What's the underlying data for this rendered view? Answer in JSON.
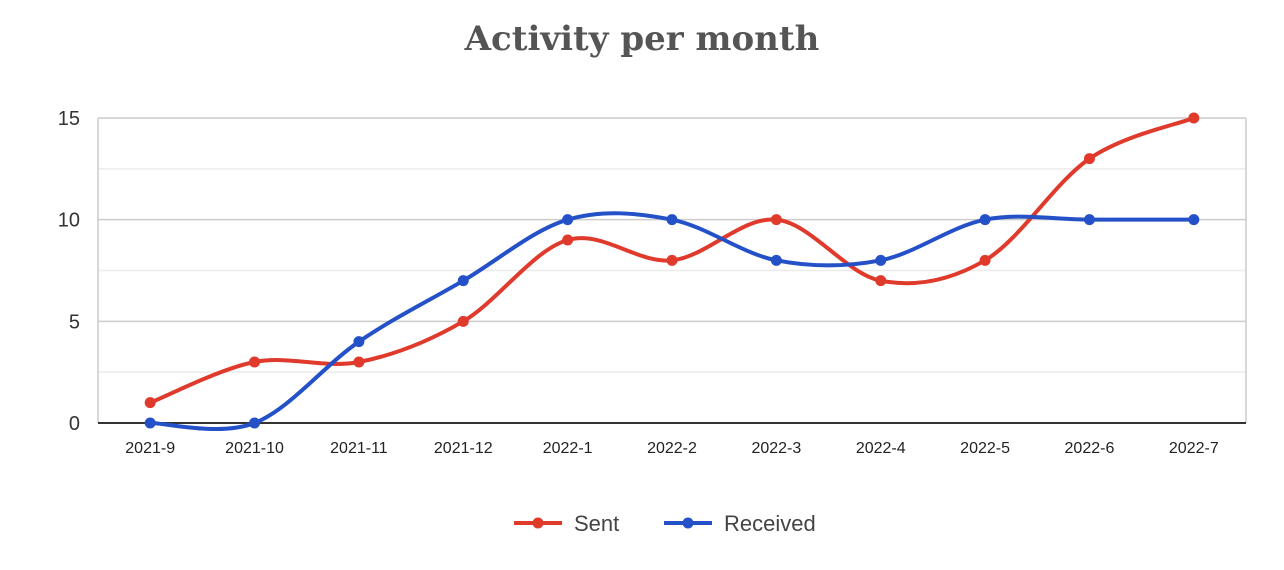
{
  "chart_data": {
    "type": "line",
    "title": "Activity per month",
    "xlabel": "",
    "ylabel": "",
    "categories": [
      "2021-9",
      "2021-10",
      "2021-11",
      "2021-12",
      "2022-1",
      "2022-2",
      "2022-3",
      "2022-4",
      "2022-5",
      "2022-6",
      "2022-7"
    ],
    "ylim": [
      0,
      15
    ],
    "yticks": [
      0,
      5,
      10,
      15
    ],
    "grid": true,
    "smooth": true,
    "legend_position": "bottom",
    "series": [
      {
        "name": "Sent",
        "color": "#e03a2c",
        "values": [
          1,
          3,
          3,
          5,
          9,
          8,
          10,
          7,
          8,
          13,
          15
        ]
      },
      {
        "name": "Received",
        "color": "#2450c8",
        "values": [
          0,
          0,
          4,
          7,
          10,
          10,
          8,
          8,
          10,
          10,
          10
        ]
      }
    ]
  }
}
